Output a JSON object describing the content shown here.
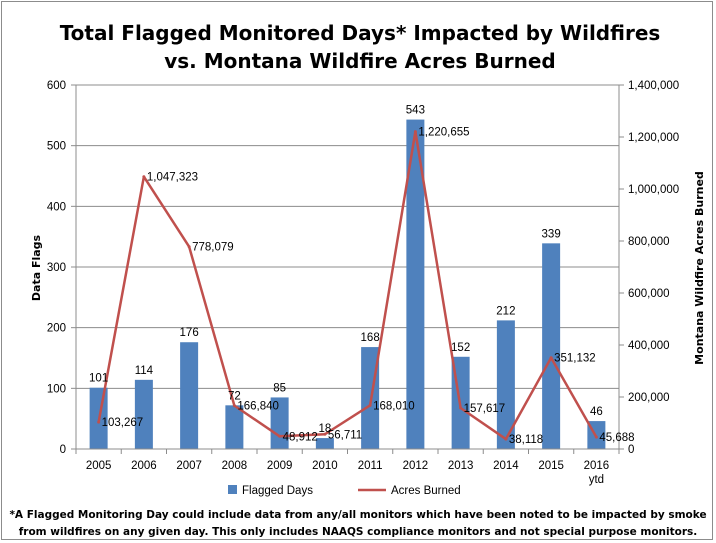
{
  "chart_data": {
    "type": "bar",
    "title_lines": [
      "Total Flagged Monitored Days* Impacted by Wildfires",
      "vs. Montana Wildfire Acres Burned"
    ],
    "categories": [
      [
        "2005"
      ],
      [
        "2006"
      ],
      [
        "2007"
      ],
      [
        "2008"
      ],
      [
        "2009"
      ],
      [
        "2010"
      ],
      [
        "2011"
      ],
      [
        "2012"
      ],
      [
        "2013"
      ],
      [
        "2014"
      ],
      [
        "2015"
      ],
      [
        "2016",
        "ytd"
      ]
    ],
    "ylabel": "Data Flags",
    "y2label": "Montana Wildfire Acres Burned",
    "ylim": [
      0,
      600
    ],
    "y_ticks": [
      0,
      100,
      200,
      300,
      400,
      500,
      600
    ],
    "y_tick_labels": [
      "0",
      "100",
      "200",
      "300",
      "400",
      "500",
      "600"
    ],
    "y2lim": [
      0,
      1400000
    ],
    "y2_ticks": [
      0,
      200000,
      400000,
      600000,
      800000,
      1000000,
      1200000,
      1400000
    ],
    "y2_tick_labels": [
      "0",
      "200,000",
      "400,000",
      "600,000",
      "800,000",
      "1,000,000",
      "1,200,000",
      "1,400,000"
    ],
    "grid": true,
    "legend_position": "bottom",
    "series": [
      {
        "name": "Flagged Days",
        "type": "bar",
        "axis": "left",
        "color": "#4f81bd",
        "values": [
          101,
          114,
          176,
          72,
          85,
          18,
          168,
          543,
          152,
          212,
          339,
          46
        ],
        "labels": [
          "101",
          "114",
          "176",
          "72",
          "85",
          "18",
          "168",
          "543",
          "152",
          "212",
          "339",
          "46"
        ]
      },
      {
        "name": "Acres Burned",
        "type": "line",
        "axis": "right",
        "color": "#c0504d",
        "values": [
          103267,
          1047323,
          778079,
          166840,
          48912,
          56711,
          168010,
          1220655,
          157617,
          38118,
          351132,
          45688
        ],
        "labels": [
          "103,267",
          "1,047,323",
          "778,079",
          "166,840",
          "48,912",
          "56,711",
          "168,010",
          "1,220,655",
          "157,617",
          "38,118",
          "351,132",
          "45,688"
        ]
      }
    ]
  },
  "footnote": {
    "line1": "*A Flagged Monitoring Day could include data from any/all monitors which have been noted to be impacted by smoke",
    "line2": "from wildfires on any given day. This only includes NAAQS compliance monitors and not special purpose monitors."
  }
}
